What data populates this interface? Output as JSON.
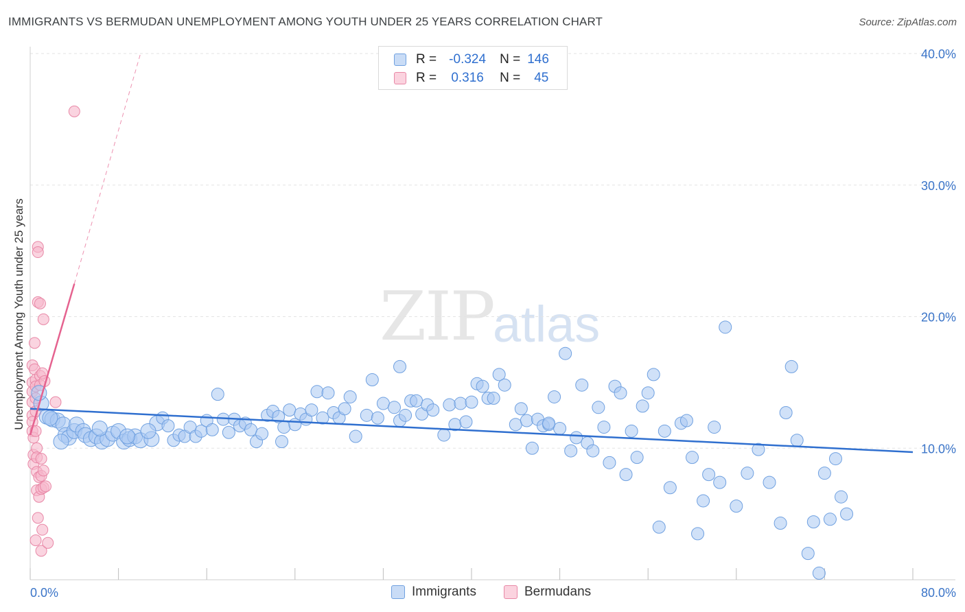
{
  "header": {
    "title": "IMMIGRANTS VS BERMUDAN UNEMPLOYMENT AMONG YOUTH UNDER 25 YEARS CORRELATION CHART",
    "source": "Source: ZipAtlas.com"
  },
  "watermark": {
    "zip": "ZIP",
    "atlas": "atlas"
  },
  "legend": {
    "rows": [
      {
        "r_label": "R =",
        "r_value": "-0.324",
        "n_label": "N =",
        "n_value": "146",
        "color": "#a9c8f2"
      },
      {
        "r_label": "R =",
        "r_value": "0.316",
        "n_label": "N =",
        "n_value": "45",
        "color": "#f7b8cb"
      }
    ]
  },
  "bottom_legend": {
    "immigrants": "Immigrants",
    "bermudans": "Bermudans"
  },
  "colors": {
    "blue_fill": "#a9c8f2",
    "blue_stroke": "#6fa0e0",
    "blue_line": "#2f6fcf",
    "pink_fill": "#f7b8cb",
    "pink_stroke": "#e887a6",
    "pink_line": "#e5628f",
    "tick_text": "#3a74c8",
    "grid": "#e3e3e3"
  },
  "chart_data": {
    "type": "scatter",
    "title": "IMMIGRANTS VS BERMUDAN UNEMPLOYMENT AMONG YOUTH UNDER 25 YEARS CORRELATION CHART",
    "xlabel": "",
    "ylabel": "Unemployment Among Youth under 25 years",
    "xlim": [
      0,
      80
    ],
    "ylim": [
      0,
      40
    ],
    "x_tick_labels": [
      "0.0%",
      "80.0%"
    ],
    "y_tick_labels": [
      "10.0%",
      "20.0%",
      "30.0%",
      "40.0%"
    ],
    "y_ticks": [
      10,
      20,
      30,
      40
    ],
    "series": [
      {
        "name": "Immigrants",
        "r": -0.324,
        "n": 146,
        "trend": {
          "x": [
            0,
            80
          ],
          "y": [
            13.0,
            9.7
          ]
        },
        "points": [
          [
            1.0,
            13.4
          ],
          [
            1.5,
            12.4
          ],
          [
            2.0,
            12.2
          ],
          [
            2.5,
            12.1
          ],
          [
            3.0,
            11.8
          ],
          [
            3.2,
            11.0
          ],
          [
            3.5,
            10.8
          ],
          [
            4.0,
            11.3
          ],
          [
            4.2,
            11.8
          ],
          [
            4.8,
            11.3
          ],
          [
            5.0,
            11.0
          ],
          [
            5.5,
            10.7
          ],
          [
            6.0,
            10.9
          ],
          [
            6.5,
            10.5
          ],
          [
            7.0,
            10.7
          ],
          [
            7.5,
            11.1
          ],
          [
            8.0,
            11.3
          ],
          [
            8.5,
            10.5
          ],
          [
            9.0,
            10.7
          ],
          [
            9.5,
            10.9
          ],
          [
            10.0,
            10.6
          ],
          [
            11.0,
            10.7
          ],
          [
            11.5,
            11.9
          ],
          [
            12.0,
            12.3
          ],
          [
            12.5,
            11.7
          ],
          [
            13.0,
            10.6
          ],
          [
            13.5,
            11.0
          ],
          [
            14.0,
            10.9
          ],
          [
            14.5,
            11.6
          ],
          [
            15.0,
            10.9
          ],
          [
            15.5,
            11.3
          ],
          [
            16.0,
            12.1
          ],
          [
            16.5,
            11.4
          ],
          [
            17.0,
            14.1
          ],
          [
            17.5,
            12.2
          ],
          [
            18.0,
            11.2
          ],
          [
            18.5,
            12.2
          ],
          [
            19.0,
            11.7
          ],
          [
            19.5,
            11.9
          ],
          [
            20.0,
            11.4
          ],
          [
            20.5,
            10.5
          ],
          [
            21.0,
            11.1
          ],
          [
            21.5,
            12.5
          ],
          [
            22.0,
            12.8
          ],
          [
            22.5,
            12.4
          ],
          [
            23.0,
            11.6
          ],
          [
            23.5,
            12.9
          ],
          [
            24.0,
            11.8
          ],
          [
            24.5,
            12.6
          ],
          [
            25.0,
            12.2
          ],
          [
            25.5,
            12.9
          ],
          [
            26.0,
            14.3
          ],
          [
            26.5,
            12.3
          ],
          [
            27.0,
            14.2
          ],
          [
            27.5,
            12.7
          ],
          [
            28.0,
            12.3
          ],
          [
            28.5,
            13.0
          ],
          [
            29.0,
            13.9
          ],
          [
            29.5,
            10.9
          ],
          [
            30.5,
            12.5
          ],
          [
            31.0,
            15.2
          ],
          [
            31.5,
            12.3
          ],
          [
            32.0,
            13.4
          ],
          [
            33.0,
            13.1
          ],
          [
            33.5,
            12.1
          ],
          [
            34.0,
            12.5
          ],
          [
            34.5,
            13.6
          ],
          [
            35.0,
            13.6
          ],
          [
            35.5,
            12.6
          ],
          [
            36.0,
            13.3
          ],
          [
            36.5,
            12.9
          ],
          [
            37.5,
            11.0
          ],
          [
            38.0,
            13.3
          ],
          [
            38.5,
            11.8
          ],
          [
            39.0,
            13.4
          ],
          [
            39.5,
            12.0
          ],
          [
            40.0,
            13.5
          ],
          [
            40.5,
            14.9
          ],
          [
            41.0,
            14.7
          ],
          [
            41.5,
            13.8
          ],
          [
            42.0,
            13.8
          ],
          [
            42.5,
            15.6
          ],
          [
            43.0,
            14.8
          ],
          [
            44.0,
            11.8
          ],
          [
            44.5,
            13.0
          ],
          [
            45.0,
            12.1
          ],
          [
            45.5,
            10.0
          ],
          [
            46.0,
            12.2
          ],
          [
            46.5,
            11.7
          ],
          [
            47.0,
            11.8
          ],
          [
            47.5,
            13.9
          ],
          [
            48.0,
            11.5
          ],
          [
            48.5,
            17.2
          ],
          [
            49.0,
            9.8
          ],
          [
            49.5,
            10.8
          ],
          [
            50.0,
            14.8
          ],
          [
            50.5,
            10.4
          ],
          [
            51.0,
            9.8
          ],
          [
            51.5,
            13.1
          ],
          [
            52.0,
            11.6
          ],
          [
            52.5,
            8.9
          ],
          [
            53.0,
            14.7
          ],
          [
            53.5,
            14.2
          ],
          [
            54.0,
            8.0
          ],
          [
            54.5,
            11.3
          ],
          [
            55.0,
            9.3
          ],
          [
            55.5,
            13.2
          ],
          [
            56.0,
            14.2
          ],
          [
            56.5,
            15.6
          ],
          [
            57.5,
            11.3
          ],
          [
            58.0,
            7.0
          ],
          [
            59.0,
            11.9
          ],
          [
            59.5,
            12.1
          ],
          [
            60.0,
            9.3
          ],
          [
            61.0,
            6.0
          ],
          [
            61.5,
            8.0
          ],
          [
            62.0,
            11.6
          ],
          [
            62.5,
            7.4
          ],
          [
            63.0,
            19.2
          ],
          [
            64.0,
            5.6
          ],
          [
            65.0,
            8.1
          ],
          [
            66.0,
            9.9
          ],
          [
            67.0,
            7.4
          ],
          [
            68.0,
            4.3
          ],
          [
            68.5,
            12.7
          ],
          [
            69.0,
            16.2
          ],
          [
            69.5,
            10.6
          ],
          [
            70.5,
            2.0
          ],
          [
            71.0,
            4.4
          ],
          [
            71.5,
            0.5
          ],
          [
            72.0,
            8.1
          ],
          [
            72.5,
            4.6
          ],
          [
            73.0,
            9.2
          ],
          [
            73.5,
            6.3
          ],
          [
            74.0,
            5.0
          ],
          [
            60.5,
            3.5
          ],
          [
            57.0,
            4.0
          ],
          [
            33.5,
            16.2
          ],
          [
            47.0,
            11.9
          ],
          [
            22.8,
            10.5
          ],
          [
            10.7,
            11.3
          ],
          [
            8.8,
            10.9
          ],
          [
            6.3,
            11.5
          ],
          [
            2.8,
            10.5
          ],
          [
            1.8,
            12.3
          ],
          [
            0.8,
            14.2
          ]
        ]
      },
      {
        "name": "Bermudans",
        "r": 0.316,
        "n": 45,
        "trend": {
          "x": [
            0,
            4.0
          ],
          "y": [
            11.0,
            22.5
          ],
          "dashed_extension": {
            "x": [
              4.0,
              10.0
            ],
            "y": [
              22.5,
              40.0
            ]
          }
        },
        "points": [
          [
            0.2,
            16.3
          ],
          [
            0.2,
            15.0
          ],
          [
            0.2,
            14.3
          ],
          [
            0.2,
            13.5
          ],
          [
            0.2,
            12.5
          ],
          [
            0.2,
            12.0
          ],
          [
            0.2,
            11.3
          ],
          [
            0.3,
            10.8
          ],
          [
            0.3,
            9.5
          ],
          [
            0.3,
            8.8
          ],
          [
            0.4,
            18.0
          ],
          [
            0.4,
            16.0
          ],
          [
            0.5,
            15.2
          ],
          [
            0.5,
            14.7
          ],
          [
            0.5,
            13.8
          ],
          [
            0.5,
            12.8
          ],
          [
            0.5,
            11.3
          ],
          [
            0.6,
            10.0
          ],
          [
            0.6,
            9.3
          ],
          [
            0.6,
            8.2
          ],
          [
            0.6,
            6.8
          ],
          [
            0.7,
            25.3
          ],
          [
            0.7,
            24.9
          ],
          [
            0.7,
            21.1
          ],
          [
            0.7,
            4.7
          ],
          [
            0.8,
            7.8
          ],
          [
            0.8,
            6.3
          ],
          [
            0.9,
            21.0
          ],
          [
            0.9,
            15.5
          ],
          [
            0.9,
            14.8
          ],
          [
            1.0,
            9.2
          ],
          [
            1.0,
            7.9
          ],
          [
            1.0,
            6.9
          ],
          [
            1.0,
            2.2
          ],
          [
            1.1,
            15.7
          ],
          [
            1.1,
            3.8
          ],
          [
            1.2,
            19.8
          ],
          [
            1.2,
            8.3
          ],
          [
            1.2,
            7.0
          ],
          [
            1.3,
            15.1
          ],
          [
            1.4,
            7.1
          ],
          [
            1.6,
            2.8
          ],
          [
            2.3,
            13.5
          ],
          [
            0.5,
            3.0
          ],
          [
            4.0,
            35.6
          ]
        ]
      }
    ]
  }
}
